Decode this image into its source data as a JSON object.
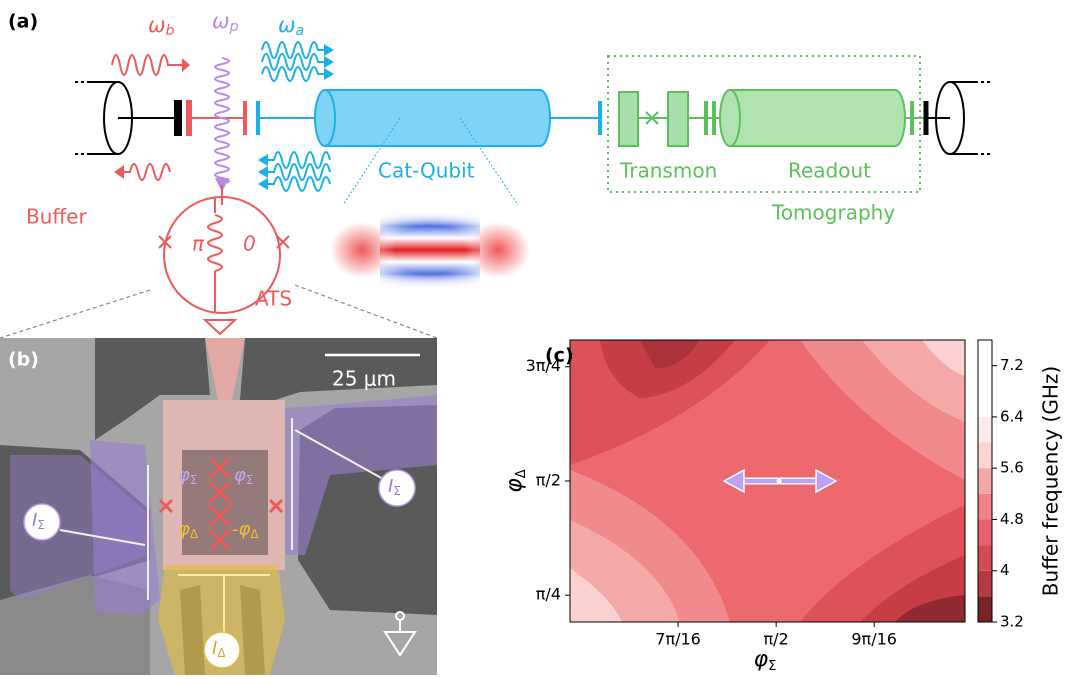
{
  "panel_a": {
    "label": "(a)",
    "omega_b": {
      "symbol": "ω",
      "sub": "b"
    },
    "omega_p": {
      "symbol": "ω",
      "sub": "p"
    },
    "omega_a": {
      "symbol": "ω",
      "sub": "a"
    },
    "cat_qubit": "Cat-Qubit",
    "transmon": "Transmon",
    "readout": "Readout",
    "tomography": "Tomography",
    "buffer": "Buffer",
    "pi": "π",
    "zero": "0",
    "ats": "ATS"
  },
  "panel_b": {
    "label": "(b)",
    "scale": "25 μm",
    "phi_sigma_left": {
      "symbol": "φ",
      "sub": "Σ"
    },
    "phi_sigma_right": {
      "symbol": "φ",
      "sub": "Σ"
    },
    "phi_delta": {
      "symbol": "φ",
      "sub": "Δ"
    },
    "minus_phi_delta": {
      "symbol": "-φ",
      "sub": "Δ"
    },
    "i_sigma_left": {
      "symbol": "I",
      "sub": "Σ"
    },
    "i_sigma_right": {
      "symbol": "I",
      "sub": "Σ"
    },
    "i_delta": {
      "symbol": "I",
      "sub": "Δ"
    }
  },
  "panel_c": {
    "label": "(c)",
    "xlabel": {
      "symbol": "φ",
      "sub": "Σ"
    },
    "ylabel": {
      "symbol": "φ",
      "sub": "Δ"
    },
    "xlim": [
      1.158,
      1.949
    ],
    "ylim": [
      0.601,
      2.54
    ],
    "xticks": [
      {
        "value": 1.3744,
        "label": "7π/16"
      },
      {
        "value": 1.5708,
        "label": "π/2"
      },
      {
        "value": 1.7671,
        "label": "9π/16"
      }
    ],
    "yticks": [
      {
        "value": 0.7854,
        "label": "π/4"
      },
      {
        "value": 1.5708,
        "label": "π/2"
      },
      {
        "value": 2.3562,
        "label": "3π/4"
      }
    ],
    "colorbar": {
      "label": "Buffer frequency (GHz)",
      "lim": [
        3.2,
        7.6
      ],
      "ticks": [
        3.2,
        4.0,
        4.8,
        5.6,
        6.4,
        7.2
      ]
    }
  }
}
